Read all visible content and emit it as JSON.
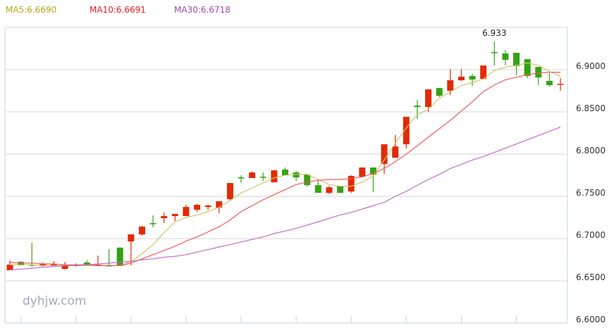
{
  "legend": {
    "ma5": "MA5:6.6690",
    "ma10": "MA10:6.6691",
    "ma30": "MA30:6.6718"
  },
  "watermark": "dyhjw.com",
  "colors": {
    "up": "#e32a04",
    "down": "#34a314",
    "ma5": "#cfc46e",
    "ma10": "#f45a5a",
    "ma30": "#c46bcc",
    "ma5_text": "#b5a71a",
    "ma10_text": "#f01818",
    "ma30_text": "#a346b5",
    "grid": "#d6d6d6",
    "axis": "#c8d3e0"
  },
  "chart_data": {
    "type": "candlestick",
    "ylim": [
      6.6,
      6.95
    ],
    "yticks": [
      "6.6000",
      "6.6500",
      "6.7000",
      "6.7500",
      "6.8000",
      "6.8500",
      "6.9000"
    ],
    "grid": true,
    "max_label": "6.933",
    "max_index": 44,
    "ohlc": [
      [
        6.6625,
        6.6742,
        6.6625,
        6.6692
      ],
      [
        6.6725,
        6.6733,
        6.6683,
        6.6683
      ],
      [
        6.6692,
        6.695,
        6.6667,
        6.6683
      ],
      [
        6.6675,
        6.6717,
        6.6667,
        6.67
      ],
      [
        6.6683,
        6.6733,
        6.6675,
        6.67
      ],
      [
        6.6642,
        6.6725,
        6.6633,
        6.6692
      ],
      [
        6.6692,
        6.6708,
        6.6667,
        6.6683
      ],
      [
        6.6717,
        6.6742,
        6.6683,
        6.6683
      ],
      [
        6.6675,
        6.68,
        6.6675,
        6.6692
      ],
      [
        6.6683,
        6.6875,
        6.6675,
        6.6675
      ],
      [
        6.6892,
        6.69,
        6.6675,
        6.6675
      ],
      [
        6.6967,
        6.705,
        6.6683,
        6.705
      ],
      [
        6.705,
        6.715,
        6.7033,
        6.7142
      ],
      [
        6.7183,
        6.7275,
        6.7133,
        6.7175
      ],
      [
        6.7242,
        6.7308,
        6.7183,
        6.7267
      ],
      [
        6.7267,
        6.7292,
        6.7208,
        6.7292
      ],
      [
        6.7267,
        6.74,
        6.7267,
        6.7375
      ],
      [
        6.7342,
        6.7408,
        6.7317,
        6.74
      ],
      [
        6.7375,
        6.74,
        6.7342,
        6.7392
      ],
      [
        6.7367,
        6.7442,
        6.73,
        6.7442
      ],
      [
        6.7467,
        6.7658,
        6.745,
        6.7658
      ],
      [
        6.7725,
        6.775,
        6.7658,
        6.7717
      ],
      [
        6.7717,
        6.7792,
        6.7717,
        6.7783
      ],
      [
        6.7733,
        6.7783,
        6.7683,
        6.7725
      ],
      [
        6.7667,
        6.7808,
        6.7667,
        6.7808
      ],
      [
        6.7817,
        6.7842,
        6.775,
        6.775
      ],
      [
        6.7783,
        6.78,
        6.7683,
        6.7725
      ],
      [
        6.7758,
        6.7767,
        6.7617,
        6.7633
      ],
      [
        6.7633,
        6.7708,
        6.7542,
        6.7542
      ],
      [
        6.7542,
        6.7625,
        6.7525,
        6.7608
      ],
      [
        6.7625,
        6.7625,
        6.7542,
        6.7542
      ],
      [
        6.7558,
        6.775,
        6.7542,
        6.7742
      ],
      [
        6.7733,
        6.7842,
        6.7733,
        6.7842
      ],
      [
        6.7842,
        6.7842,
        6.755,
        6.7758
      ],
      [
        6.7883,
        6.8117,
        6.7767,
        6.8117
      ],
      [
        6.7958,
        6.8225,
        6.7958,
        6.8092
      ],
      [
        6.8117,
        6.8442,
        6.8067,
        6.8442
      ],
      [
        6.8575,
        6.8642,
        6.8417,
        6.8558
      ],
      [
        6.8558,
        6.8767,
        6.85,
        6.8767
      ],
      [
        6.8783,
        6.8783,
        6.8675,
        6.8692
      ],
      [
        6.875,
        6.9008,
        6.87,
        6.8875
      ],
      [
        6.8875,
        6.9008,
        6.8867,
        6.8917
      ],
      [
        6.8925,
        6.895,
        6.8808,
        6.8883
      ],
      [
        6.8892,
        6.905,
        6.8883,
        6.905
      ],
      [
        6.9208,
        6.9333,
        6.905,
        6.92
      ],
      [
        6.9192,
        6.9233,
        6.905,
        6.9117
      ],
      [
        6.92,
        6.92,
        6.8933,
        6.9042
      ],
      [
        6.9125,
        6.9125,
        6.89,
        6.8925
      ],
      [
        6.9033,
        6.9033,
        6.8817,
        6.8908
      ],
      [
        6.8867,
        6.8958,
        6.88,
        6.8817
      ],
      [
        6.8825,
        6.89,
        6.875,
        6.8833
      ]
    ],
    "series": [
      {
        "name": "MA5",
        "values": [
          6.669,
          6.669,
          6.669,
          6.668,
          6.668,
          6.668,
          6.668,
          6.668,
          6.668,
          6.668,
          6.668,
          6.673,
          6.682,
          6.693,
          6.707,
          6.72,
          6.725,
          6.728,
          6.732,
          6.737,
          6.745,
          6.754,
          6.76,
          6.766,
          6.772,
          6.775,
          6.776,
          6.776,
          6.77,
          6.764,
          6.762,
          6.762,
          6.767,
          6.774,
          6.793,
          6.813,
          6.831,
          6.847,
          6.853,
          6.866,
          6.874,
          6.881,
          6.885,
          6.889,
          6.899,
          6.903,
          6.905,
          6.908,
          6.905,
          6.898,
          6.892
        ]
      },
      {
        "name": "MA10",
        "values": [
          6.672,
          6.671,
          6.671,
          6.67,
          6.67,
          6.669,
          6.669,
          6.669,
          6.668,
          6.668,
          6.668,
          6.671,
          6.676,
          6.681,
          6.686,
          6.691,
          6.697,
          6.702,
          6.708,
          6.714,
          6.722,
          6.732,
          6.739,
          6.746,
          6.752,
          6.758,
          6.764,
          6.767,
          6.769,
          6.77,
          6.77,
          6.771,
          6.773,
          6.777,
          6.783,
          6.791,
          6.8,
          6.81,
          6.82,
          6.83,
          6.84,
          6.851,
          6.862,
          6.874,
          6.882,
          6.888,
          6.891,
          6.894,
          6.896,
          6.897,
          6.897
        ]
      },
      {
        "name": "MA30",
        "values": [
          6.663,
          6.664,
          6.665,
          6.666,
          6.667,
          6.668,
          6.668,
          6.669,
          6.67,
          6.671,
          6.672,
          6.673,
          6.675,
          6.676,
          6.678,
          6.679,
          6.681,
          6.684,
          6.687,
          6.69,
          6.693,
          6.696,
          6.699,
          6.702,
          6.706,
          6.709,
          6.712,
          6.716,
          6.72,
          6.724,
          6.728,
          6.731,
          6.735,
          6.739,
          6.743,
          6.75,
          6.756,
          6.763,
          6.77,
          6.776,
          6.783,
          6.788,
          6.793,
          6.797,
          6.802,
          6.807,
          6.812,
          6.817,
          6.822,
          6.827,
          6.832
        ]
      }
    ]
  }
}
